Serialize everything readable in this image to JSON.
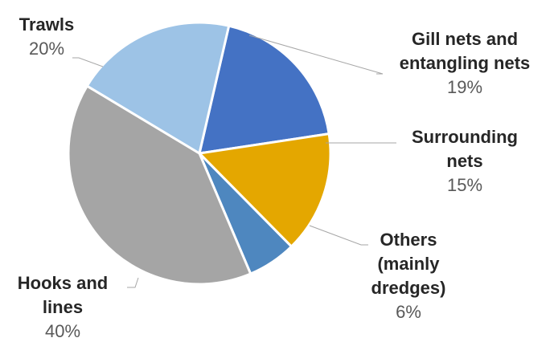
{
  "chart_data": {
    "type": "pie",
    "title": "",
    "slices": [
      {
        "label": "Gill nets and entangling nets",
        "name_lines": [
          "Gill nets and",
          "entangling nets"
        ],
        "value": 19,
        "pct_label": "19%",
        "color": "#4472C4"
      },
      {
        "label": "Surrounding nets",
        "name_lines": [
          "Surrounding",
          "nets"
        ],
        "value": 15,
        "pct_label": "15%",
        "color": "#E4A700"
      },
      {
        "label": "Others (mainly dredges)",
        "name_lines": [
          "Others",
          "(mainly",
          "dredges)"
        ],
        "value": 6,
        "pct_label": "6%",
        "color": "#4E87BF"
      },
      {
        "label": "Hooks and lines",
        "name_lines": [
          "Hooks and",
          "lines"
        ],
        "value": 40,
        "pct_label": "40%",
        "color": "#A5A5A5"
      },
      {
        "label": "Trawls",
        "name_lines": [
          "Trawls"
        ],
        "value": 20,
        "pct_label": "20%",
        "color": "#9DC3E6"
      }
    ],
    "legend": "none",
    "start_angle_deg": 13
  }
}
